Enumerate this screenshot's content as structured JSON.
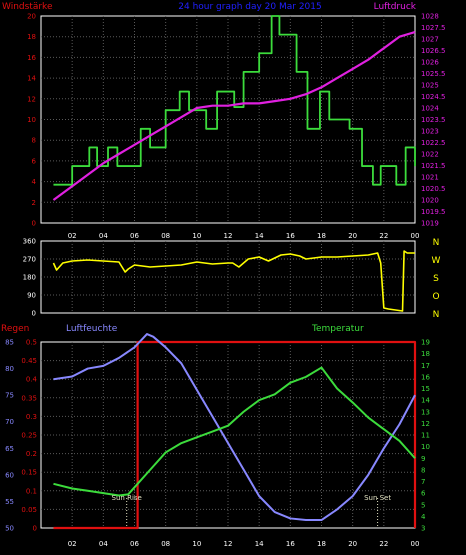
{
  "colors": {
    "background": "#000000",
    "axis": "#ffffff",
    "grid": "#5a5a5a",
    "wind": "#3cdc3c",
    "pressure": "#e020e0",
    "title": "#2020ff",
    "direction": "#ffff00",
    "rain": "#e01010",
    "humidity": "#8888ff",
    "temperature": "#3cdc3c",
    "sun": "#e0e0c0",
    "dir_labels": "#ffff00",
    "windstaerke_label": "#e01010"
  },
  "chart_data": [
    {
      "type": "line",
      "title": "24 hour graph day  20 Mar 2015",
      "left_label": "Windstärke",
      "right_label": "Luftdruck",
      "x_ticks": [
        "02",
        "04",
        "06",
        "08",
        "10",
        "12",
        "14",
        "16",
        "18",
        "20",
        "22",
        "00"
      ],
      "y_left": {
        "min": 0,
        "max": 20,
        "ticks": [
          "0",
          "2",
          "4",
          "6",
          "8",
          "10",
          "12",
          "14",
          "16",
          "18",
          "20"
        ]
      },
      "y_right": {
        "min": 1019,
        "max": 1028,
        "ticks": [
          "1019",
          "1019.5",
          "1020",
          "1020.5",
          "1021",
          "1021.5",
          "1022",
          "1022.5",
          "1023",
          "1023.5",
          "1024",
          "1024.5",
          "1025",
          "1025.5",
          "1026",
          "1026.5",
          "1027",
          "1027.5",
          "1028"
        ]
      },
      "series": [
        {
          "name": "Windstärke",
          "axis": "left",
          "x_hours": [
            0.8,
            2.0,
            3.1,
            3.6,
            4.3,
            4.9,
            6.4,
            7.0,
            8.0,
            8.9,
            9.5,
            10.6,
            11.3,
            12.4,
            13.0,
            14.0,
            14.8,
            15.3,
            16.4,
            17.1,
            17.9,
            18.5,
            19.8,
            20.6,
            21.3,
            21.8,
            22.8,
            23.4,
            24.0
          ],
          "values": [
            3.7,
            5.5,
            7.3,
            5.5,
            7.3,
            5.5,
            9.1,
            7.3,
            10.9,
            12.7,
            10.9,
            9.1,
            12.7,
            11.2,
            14.6,
            16.4,
            20.0,
            18.2,
            14.6,
            9.1,
            12.7,
            10.0,
            9.1,
            5.5,
            3.7,
            5.5,
            3.7,
            7.3,
            5.5
          ]
        },
        {
          "name": "Luftdruck",
          "axis": "right",
          "x_hours": [
            0.8,
            2,
            3,
            4,
            5,
            6,
            7,
            8,
            9,
            10,
            11,
            12,
            13,
            14,
            15,
            16,
            17,
            18,
            19,
            20,
            21,
            22,
            23,
            24
          ],
          "values": [
            1020.0,
            1020.6,
            1021.1,
            1021.6,
            1022.0,
            1022.4,
            1022.8,
            1023.2,
            1023.6,
            1024.0,
            1024.1,
            1024.1,
            1024.2,
            1024.2,
            1024.3,
            1024.4,
            1024.6,
            1024.9,
            1025.3,
            1025.7,
            1026.1,
            1026.6,
            1027.1,
            1027.3
          ]
        }
      ]
    },
    {
      "type": "line",
      "y": {
        "min": 0,
        "max": 360,
        "ticks": [
          "0",
          "90",
          "180",
          "270",
          "360"
        ]
      },
      "dir_labels": [
        "N",
        "W",
        "S",
        "O",
        "N"
      ],
      "series": [
        {
          "name": "Windrichtung",
          "x_hours": [
            0.8,
            1.0,
            1.4,
            2,
            3,
            4,
            5,
            5.4,
            5.6,
            6,
            7,
            8,
            9,
            10,
            11,
            12,
            12.3,
            12.7,
            13.3,
            14,
            14.6,
            15.4,
            16,
            16.6,
            17,
            18,
            19,
            20,
            21,
            21.6,
            21.8,
            22.0,
            22.3,
            23.2,
            23.3,
            23.5,
            24.0
          ],
          "values": [
            250,
            215,
            250,
            260,
            265,
            260,
            255,
            205,
            220,
            240,
            230,
            235,
            240,
            255,
            245,
            250,
            250,
            230,
            270,
            280,
            260,
            290,
            295,
            285,
            270,
            280,
            280,
            285,
            290,
            300,
            250,
            25,
            20,
            10,
            310,
            300,
            300
          ]
        }
      ]
    },
    {
      "type": "line",
      "x_ticks": [
        "02",
        "04",
        "06",
        "08",
        "10",
        "12",
        "14",
        "16",
        "18",
        "20",
        "22",
        "00"
      ],
      "y_rain": {
        "label": "Regen",
        "min": 0,
        "max": 0.5,
        "ticks": [
          "0",
          "0.05",
          "0.1",
          "0.15",
          "0.2",
          "0.25",
          "0.3",
          "0.35",
          "0.4",
          "0.45",
          "0.5"
        ]
      },
      "y_humidity": {
        "label": "Luftfeuchte",
        "min": 50,
        "max": 85,
        "ticks": [
          "50",
          "55",
          "60",
          "65",
          "70",
          "75",
          "80",
          "85"
        ]
      },
      "y_temperature": {
        "label": "Temperatur",
        "min": 3,
        "max": 19,
        "ticks": [
          "3",
          "4",
          "5",
          "6",
          "7",
          "8",
          "9",
          "10",
          "11",
          "12",
          "13",
          "14",
          "15",
          "16",
          "17",
          "18",
          "19"
        ]
      },
      "annotations": {
        "sunrise": "Sun Rise",
        "sunset": "Sun Set",
        "sunrise_hour": 5.5,
        "sunset_hour": 21.6
      },
      "series": [
        {
          "name": "Regen",
          "x_hours": [
            0.8,
            6.2,
            6.2,
            24.0,
            24.0
          ],
          "values": [
            0.0,
            0.0,
            0.5,
            0.5,
            0.0
          ]
        },
        {
          "name": "Luftfeuchte",
          "x_hours": [
            0.8,
            2,
            3,
            4,
            5,
            6,
            6.8,
            7.2,
            8,
            9,
            10,
            11,
            12,
            13,
            14,
            15,
            16,
            17,
            18,
            19,
            20,
            21,
            22,
            23,
            24
          ],
          "values": [
            78.0,
            78.5,
            80.0,
            80.5,
            82.0,
            84.0,
            86.5,
            86.0,
            84.0,
            81.0,
            76.0,
            71.0,
            66.0,
            61.0,
            56.0,
            53.0,
            51.8,
            51.5,
            51.5,
            53.5,
            56.0,
            60.0,
            65.0,
            69.5,
            75.0
          ]
        },
        {
          "name": "Temperatur",
          "x_hours": [
            0.8,
            2,
            3,
            4,
            5,
            5.6,
            6,
            7,
            8,
            9,
            10,
            11,
            12,
            13,
            14,
            15,
            16,
            17,
            18,
            19,
            20,
            21,
            22,
            23,
            24
          ],
          "values": [
            6.8,
            6.4,
            6.2,
            6.0,
            5.8,
            5.9,
            6.5,
            8.0,
            9.5,
            10.3,
            10.8,
            11.3,
            11.8,
            13.0,
            14.0,
            14.5,
            15.5,
            16.0,
            16.8,
            15.0,
            13.8,
            12.5,
            11.5,
            10.5,
            9.0
          ]
        }
      ]
    }
  ]
}
